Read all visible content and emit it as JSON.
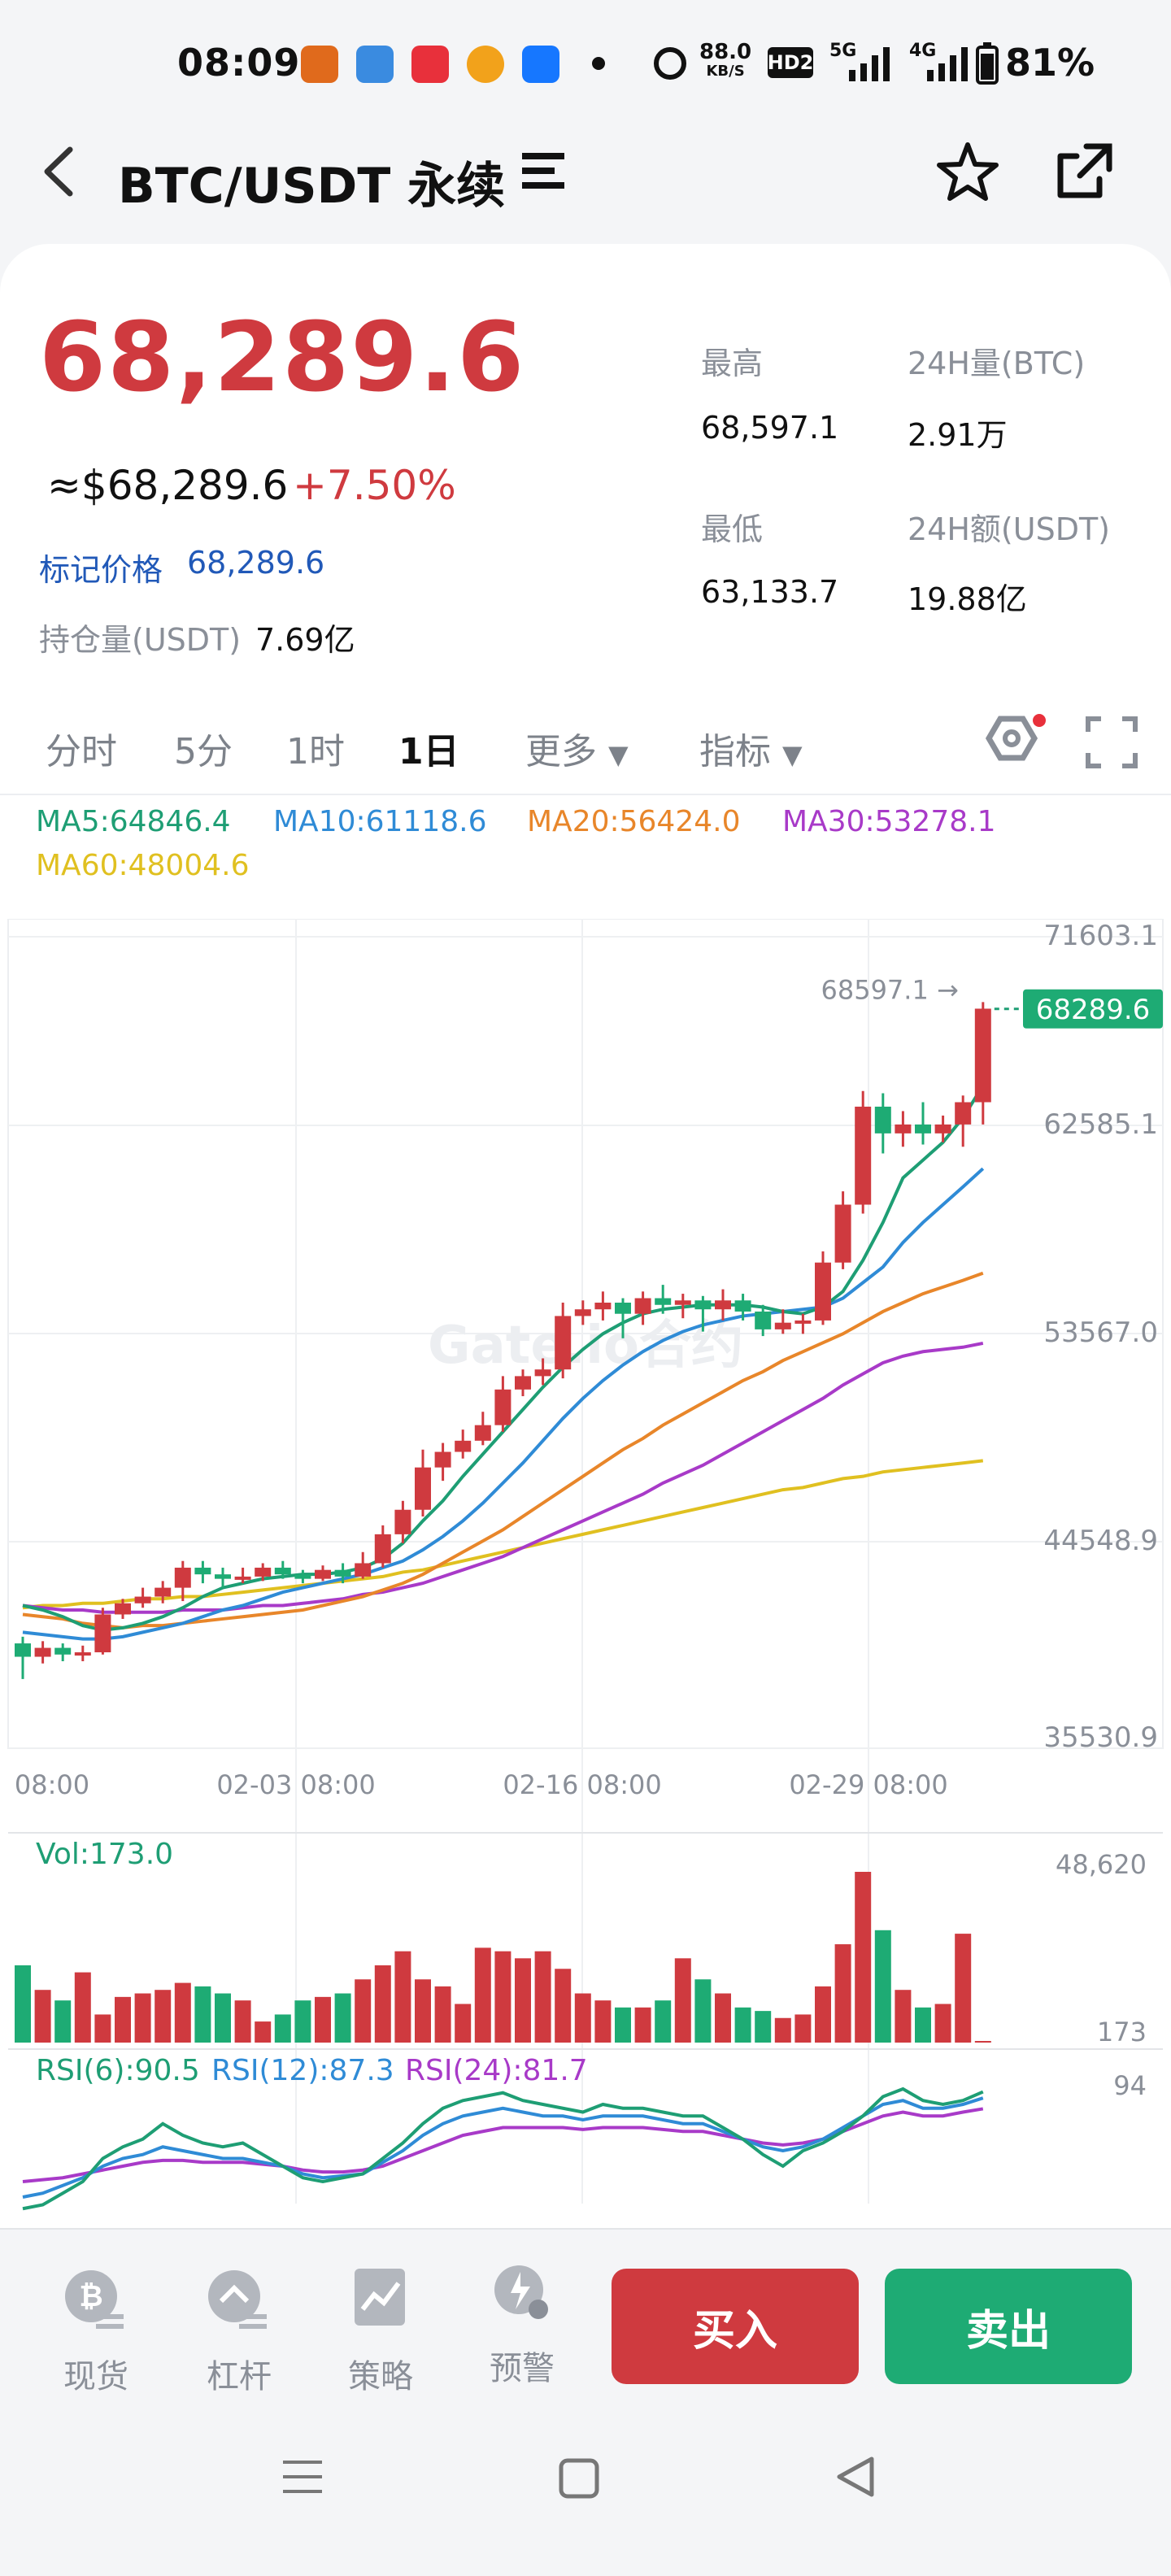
{
  "status_bar": {
    "time": "08:09",
    "net_speed": "88.0",
    "net_unit": "KB/S",
    "battery": "81%",
    "hd": "HD2",
    "signal1": "5G",
    "signal2": "4G"
  },
  "header": {
    "title": "BTC/USDT 永续"
  },
  "price": {
    "last": "68,289.6",
    "usd": "≈$68,289.6",
    "change": "+7.50%",
    "mark_label": "标记价格",
    "mark_value": "68,289.6",
    "oi_label": "持仓量(USDT)",
    "oi_value": "7.69亿"
  },
  "stats": {
    "high_label": "最高",
    "high_value": "68,597.1",
    "vol_label": "24H量(BTC)",
    "vol_value": "2.91万",
    "low_label": "最低",
    "low_value": "63,133.7",
    "amt_label": "24H额(USDT)",
    "amt_value": "19.88亿"
  },
  "tabs": [
    "分时",
    "5分",
    "1时",
    "1日",
    "更多",
    "指标"
  ],
  "ma": {
    "ma5": "MA5:64846.4",
    "ma10": "MA10:61118.6",
    "ma20": "MA20:56424.0",
    "ma30": "MA30:53278.1",
    "ma60": "MA60:48004.6"
  },
  "colors": {
    "up": "#cf3a3f",
    "down": "#1eab74",
    "ma5": "#1e9e74",
    "ma10": "#2f8bd6",
    "ma20": "#e8862a",
    "ma30": "#a83ac8",
    "ma60": "#e0c020"
  },
  "chart_data": {
    "type": "candlestick",
    "y_ticks": [
      "71603.1",
      "62585.1",
      "53567.0",
      "44548.9",
      "35530.9"
    ],
    "ylim": [
      35530.9,
      71603.1
    ],
    "x_ticks": [
      "08:00",
      "02-03 08:00",
      "02-16 08:00",
      "02-29 08:00"
    ],
    "high_marker": "68597.1",
    "last_price_tag": "68289.6",
    "watermark": "Gate.io合约",
    "candles": [
      [
        39800,
        39200,
        40100,
        38200
      ],
      [
        39200,
        39600,
        39900,
        38900
      ],
      [
        39600,
        39300,
        39800,
        39000
      ],
      [
        39300,
        39400,
        39700,
        39000
      ],
      [
        39400,
        41100,
        41400,
        39300
      ],
      [
        41100,
        41600,
        41800,
        40900
      ],
      [
        41600,
        41900,
        42300,
        41400
      ],
      [
        41900,
        42300,
        42600,
        41600
      ],
      [
        42300,
        43200,
        43500,
        41700
      ],
      [
        43200,
        42900,
        43500,
        42500
      ],
      [
        42900,
        42700,
        43200,
        42300
      ],
      [
        42700,
        42800,
        43200,
        42500
      ],
      [
        42800,
        43200,
        43400,
        42600
      ],
      [
        43200,
        42900,
        43500,
        42700
      ],
      [
        42900,
        42700,
        43100,
        42500
      ],
      [
        42700,
        43100,
        43300,
        42600
      ],
      [
        43100,
        42800,
        43400,
        42500
      ],
      [
        42800,
        43400,
        43900,
        42700
      ],
      [
        43400,
        44700,
        45100,
        43200
      ],
      [
        44700,
        45800,
        46200,
        44300
      ],
      [
        45800,
        47700,
        48500,
        45500
      ],
      [
        47700,
        48400,
        48800,
        47100
      ],
      [
        48400,
        48900,
        49400,
        48100
      ],
      [
        48900,
        49600,
        50200,
        48700
      ],
      [
        49600,
        51200,
        51800,
        49300
      ],
      [
        51200,
        51800,
        52100,
        50900
      ],
      [
        51800,
        52100,
        52600,
        51400
      ],
      [
        52100,
        54500,
        55100,
        51700
      ],
      [
        54500,
        54800,
        55200,
        54100
      ],
      [
        54800,
        55100,
        55600,
        54300
      ],
      [
        55100,
        54600,
        55300,
        53500
      ],
      [
        54600,
        55300,
        55600,
        54100
      ],
      [
        55300,
        55000,
        55900,
        54600
      ],
      [
        55000,
        55200,
        55500,
        54400
      ],
      [
        55200,
        54800,
        55400,
        53800
      ],
      [
        54800,
        55200,
        55700,
        54300
      ],
      [
        55200,
        54700,
        55500,
        54300
      ],
      [
        54700,
        53900,
        55000,
        53600
      ],
      [
        53900,
        54200,
        54800,
        53700
      ],
      [
        54200,
        54300,
        54600,
        53700
      ],
      [
        54300,
        56900,
        57400,
        54100
      ],
      [
        56900,
        59500,
        60100,
        56600
      ],
      [
        59500,
        63900,
        64600,
        59100
      ],
      [
        63900,
        62700,
        64500,
        61800
      ],
      [
        62700,
        63100,
        63700,
        62100
      ],
      [
        63100,
        62700,
        64100,
        62200
      ],
      [
        62700,
        63100,
        63500,
        62300
      ],
      [
        63100,
        64100,
        64400,
        62100
      ],
      [
        64100,
        68300,
        68597,
        63100
      ]
    ],
    "ma5": [
      41500,
      41300,
      41000,
      40600,
      40400,
      40500,
      40700,
      41000,
      41400,
      41900,
      42300,
      42500,
      42700,
      42800,
      42900,
      42900,
      43000,
      43200,
      43600,
      44300,
      45300,
      46200,
      47300,
      48300,
      49300,
      50300,
      51300,
      52200,
      53000,
      53700,
      54200,
      54600,
      54800,
      54900,
      55000,
      55000,
      55000,
      54900,
      54700,
      54600,
      54900,
      55600,
      57000,
      58700,
      60700,
      61500,
      62300,
      63400,
      64846
    ],
    "ma10": [
      40300,
      40200,
      40100,
      40000,
      40000,
      40100,
      40300,
      40500,
      40700,
      41000,
      41300,
      41500,
      41800,
      42100,
      42300,
      42500,
      42700,
      42900,
      43200,
      43500,
      44000,
      44600,
      45300,
      46100,
      47000,
      47900,
      48900,
      49900,
      50800,
      51600,
      52300,
      52900,
      53400,
      53800,
      54100,
      54300,
      54500,
      54600,
      54700,
      54800,
      54900,
      55300,
      56000,
      56700,
      57800,
      58700,
      59500,
      60300,
      61118
    ],
    "ma20": [
      41100,
      41000,
      40900,
      40700,
      40600,
      40500,
      40600,
      40600,
      40700,
      40800,
      40900,
      41000,
      41100,
      41200,
      41300,
      41500,
      41700,
      41900,
      42200,
      42500,
      42900,
      43400,
      43900,
      44400,
      44900,
      45500,
      46100,
      46700,
      47300,
      47900,
      48500,
      49000,
      49600,
      50100,
      50600,
      51100,
      51600,
      52000,
      52500,
      52900,
      53300,
      53700,
      54200,
      54700,
      55100,
      55500,
      55800,
      56100,
      56424
    ],
    "ma30": [
      41500,
      41400,
      41300,
      41300,
      41200,
      41200,
      41200,
      41200,
      41300,
      41300,
      41300,
      41400,
      41500,
      41500,
      41600,
      41700,
      41800,
      42000,
      42100,
      42300,
      42500,
      42800,
      43100,
      43400,
      43700,
      44100,
      44500,
      44900,
      45300,
      45700,
      46100,
      46500,
      47000,
      47400,
      47800,
      48300,
      48800,
      49300,
      49800,
      50300,
      50800,
      51400,
      51900,
      52400,
      52700,
      52900,
      53000,
      53100,
      53278
    ],
    "ma60": [
      41400,
      41500,
      41500,
      41600,
      41600,
      41700,
      41800,
      41800,
      41900,
      41900,
      42000,
      42100,
      42200,
      42300,
      42400,
      42500,
      42600,
      42700,
      42800,
      43000,
      43100,
      43300,
      43500,
      43700,
      43900,
      44100,
      44300,
      44500,
      44700,
      44900,
      45100,
      45300,
      45500,
      45700,
      45900,
      46100,
      46300,
      46500,
      46700,
      46800,
      47000,
      47200,
      47300,
      47500,
      47600,
      47700,
      47800,
      47900,
      48004
    ],
    "volume": {
      "label": "Vol:173.0",
      "y_ticks": [
        "48,620",
        "173"
      ],
      "values": [
        22000,
        15000,
        12000,
        20000,
        8000,
        13000,
        14000,
        15000,
        17000,
        16000,
        14000,
        12000,
        6000,
        8000,
        12000,
        13000,
        14000,
        18000,
        22000,
        26000,
        18000,
        16000,
        11000,
        27000,
        26000,
        24000,
        26000,
        21000,
        14000,
        12000,
        10000,
        10000,
        12000,
        24000,
        18000,
        14000,
        10000,
        9000,
        7000,
        8000,
        16000,
        28000,
        48620,
        32000,
        15000,
        10000,
        11000,
        31000,
        173
      ]
    },
    "rsi": {
      "labels": [
        "RSI(6):90.5",
        "RSI(12):87.3",
        "RSI(24):81.7"
      ],
      "y_tick": "94",
      "rsi6": [
        30,
        32,
        38,
        44,
        56,
        62,
        66,
        74,
        68,
        64,
        62,
        64,
        58,
        52,
        46,
        44,
        46,
        48,
        56,
        64,
        74,
        82,
        86,
        88,
        90,
        86,
        84,
        82,
        80,
        84,
        82,
        82,
        80,
        78,
        78,
        72,
        66,
        58,
        52,
        60,
        64,
        70,
        78,
        88,
        92,
        86,
        84,
        86,
        90.5
      ],
      "rsi12": [
        36,
        38,
        42,
        46,
        52,
        56,
        58,
        62,
        60,
        58,
        56,
        56,
        54,
        52,
        48,
        46,
        47,
        48,
        54,
        60,
        68,
        74,
        78,
        80,
        82,
        80,
        78,
        78,
        76,
        78,
        78,
        78,
        76,
        74,
        74,
        70,
        66,
        62,
        60,
        62,
        66,
        72,
        78,
        84,
        86,
        82,
        82,
        84,
        87.3
      ],
      "rsi24": [
        44,
        45,
        46,
        48,
        50,
        52,
        54,
        55,
        55,
        54,
        54,
        54,
        53,
        52,
        50,
        49,
        49,
        50,
        52,
        56,
        60,
        64,
        68,
        70,
        72,
        72,
        72,
        72,
        71,
        72,
        72,
        72,
        71,
        70,
        70,
        68,
        66,
        64,
        63,
        64,
        66,
        70,
        74,
        78,
        80,
        78,
        78,
        80,
        81.7
      ]
    }
  },
  "bottom_nav": {
    "items": [
      "现货",
      "杠杆",
      "策略",
      "预警"
    ],
    "buy": "买入",
    "sell": "卖出"
  }
}
